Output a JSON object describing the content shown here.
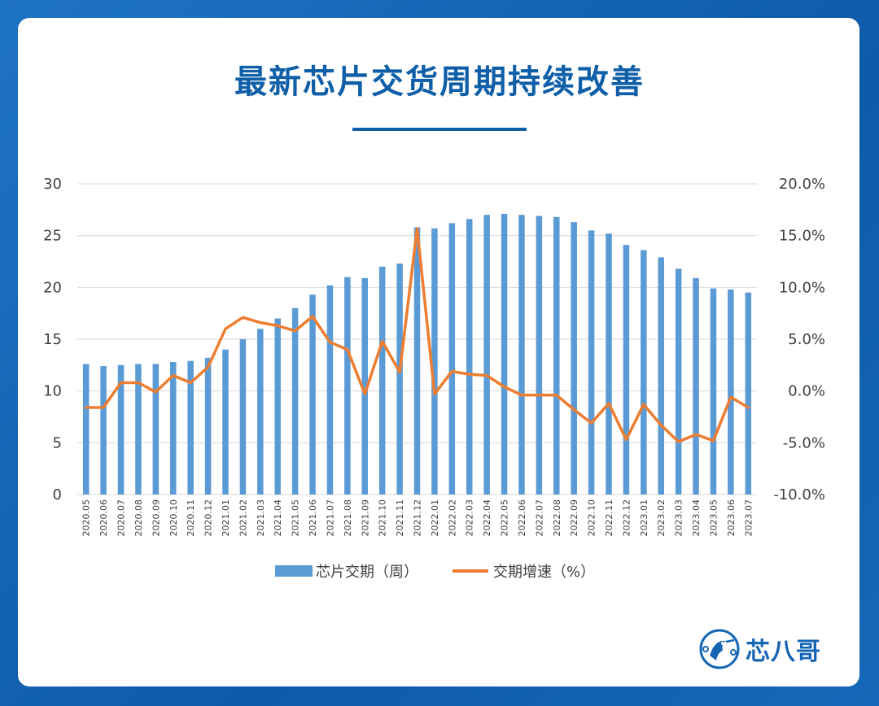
{
  "page": {
    "title": "最新芯片交货周期持续改善",
    "brand": "芯八哥"
  },
  "colors": {
    "background": "#1565b5",
    "title": "#0e5ea8",
    "bar": "#5b9bd5",
    "line": "#ed7d31",
    "grid": "#d9d9d9",
    "axis_text": "#404040"
  },
  "chart_data": {
    "type": "bar",
    "categories": [
      "2020.05",
      "2020.06",
      "2020.07",
      "2020.08",
      "2020.09",
      "2020.10",
      "2020.11",
      "2020.12",
      "2021.01",
      "2021.02",
      "2021.03",
      "2021.04",
      "2021.05",
      "2021.06",
      "2021.07",
      "2021.08",
      "2021.09",
      "2021.10",
      "2021.11",
      "2021.12",
      "2022.01",
      "2022.02",
      "2022.03",
      "2022.04",
      "2022.05",
      "2022.06",
      "2022.07",
      "2022.08",
      "2022.09",
      "2022.10",
      "2022.11",
      "2022.12",
      "2023.01",
      "2023.02",
      "2023.03",
      "2023.04",
      "2023.05",
      "2023.06",
      "2023.07"
    ],
    "series": [
      {
        "name": "芯片交期（周）",
        "type": "bar",
        "axis": "left",
        "color": "#5b9bd5",
        "values": [
          12.6,
          12.4,
          12.5,
          12.6,
          12.6,
          12.8,
          12.9,
          13.2,
          14.0,
          15.0,
          16.0,
          17.0,
          18.0,
          19.3,
          20.2,
          21.0,
          20.9,
          22.0,
          22.3,
          25.8,
          25.7,
          26.2,
          26.6,
          27.0,
          27.1,
          27.0,
          26.9,
          26.8,
          26.3,
          25.5,
          25.2,
          24.1,
          23.6,
          22.9,
          21.8,
          20.9,
          19.9,
          19.8,
          19.5
        ]
      },
      {
        "name": "交期增速（%）",
        "type": "line",
        "axis": "right",
        "color": "#ed7d31",
        "values": [
          -1.6,
          -1.6,
          0.8,
          0.8,
          -0.1,
          1.5,
          0.8,
          2.3,
          6.0,
          7.1,
          6.6,
          6.3,
          5.8,
          7.2,
          4.7,
          4.0,
          -0.3,
          4.8,
          1.8,
          15.7,
          -0.3,
          1.9,
          1.6,
          1.5,
          0.4,
          -0.4,
          -0.4,
          -0.4,
          -1.8,
          -3.1,
          -1.2,
          -4.7,
          -1.3,
          -3.3,
          -4.9,
          -4.2,
          -4.8,
          -0.6,
          -1.6
        ]
      }
    ],
    "y_left": {
      "ylim": [
        0,
        30
      ],
      "ticks": [
        "0",
        "5",
        "10",
        "15",
        "20",
        "25",
        "30"
      ]
    },
    "y_right": {
      "ylim": [
        -10,
        20
      ],
      "ticks": [
        "-10.0%",
        "-5.0%",
        "0.0%",
        "5.0%",
        "10.0%",
        "15.0%",
        "20.0%"
      ]
    },
    "grid": true,
    "legend_position": "bottom",
    "legend": [
      "芯片交期（周）",
      "交期增速（%）"
    ]
  }
}
